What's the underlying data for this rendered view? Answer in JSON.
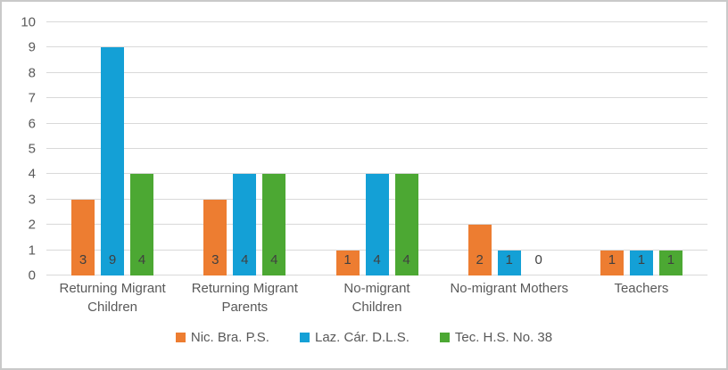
{
  "chart_data": {
    "type": "bar",
    "title": "",
    "xlabel": "",
    "ylabel": "",
    "categories": [
      "Returning Migrant Children",
      "Returning Migrant Parents",
      "No-migrant Children",
      "No-migrant Mothers",
      "Teachers"
    ],
    "category_lines": [
      [
        "Returning Migrant",
        "Children"
      ],
      [
        "Returning Migrant",
        "Parents"
      ],
      [
        "No-migrant",
        "Children"
      ],
      [
        "No-migrant Mothers"
      ],
      [
        "Teachers"
      ]
    ],
    "series": [
      {
        "name": "Nic. Bra. P.S.",
        "color": "#ED7D31",
        "values": [
          3,
          3,
          1,
          2,
          1
        ]
      },
      {
        "name": "Laz. Cár. D.L.S.",
        "color": "#14A0D6",
        "values": [
          9,
          4,
          4,
          1,
          1
        ]
      },
      {
        "name": "Tec. H.S. No. 38",
        "color": "#4CA833",
        "values": [
          4,
          4,
          4,
          0,
          1
        ]
      }
    ],
    "ylim": [
      0,
      10
    ],
    "yticks": [
      0,
      1,
      2,
      3,
      4,
      5,
      6,
      7,
      8,
      9,
      10
    ],
    "grid": true,
    "legend_position": "bottom",
    "data_labels": "inside-base"
  },
  "styles": {
    "grid_color": "#D9D9D9",
    "tick_text_color": "#595959",
    "data_label_color": "#404040",
    "background": "#FFFFFF",
    "border_color": "#C9C9C9"
  }
}
